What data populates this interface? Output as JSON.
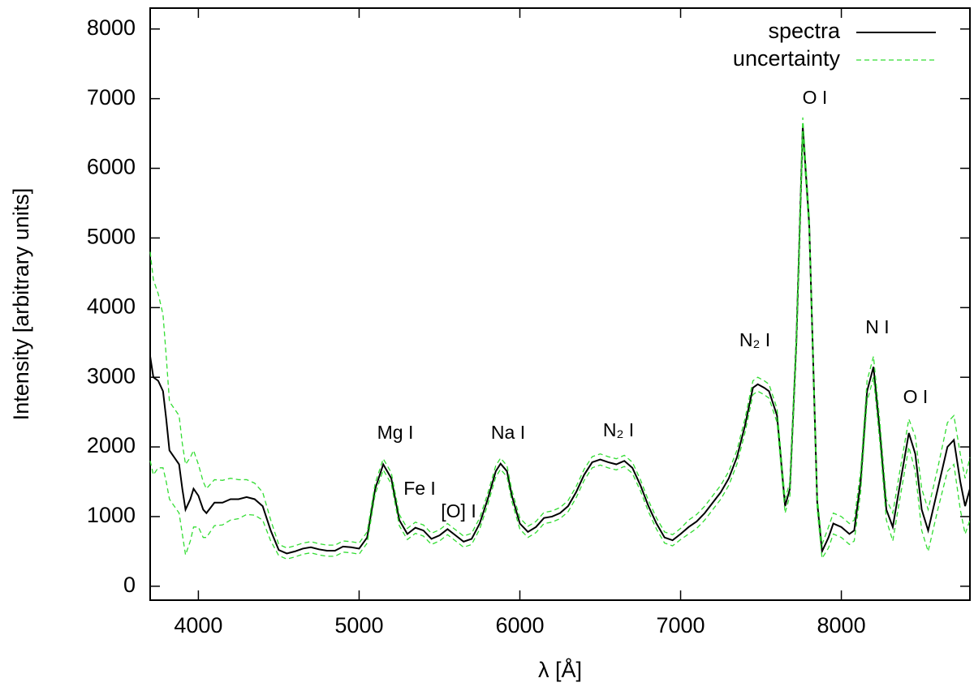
{
  "chart_data": {
    "type": "line",
    "x_label": "λ [Å]",
    "y_label": "Intensity [arbitrary units]",
    "xlim": [
      3700,
      8800
    ],
    "ylim": [
      -200,
      8300
    ],
    "xticks": [
      4000,
      5000,
      6000,
      7000,
      8000
    ],
    "yticks": [
      0,
      1000,
      2000,
      3000,
      4000,
      5000,
      6000,
      7000,
      8000
    ],
    "legend": "top-right",
    "annotations": [
      "Mg I",
      "Fe I",
      "[O] I",
      "Na I",
      "N₂ I",
      "N₂ I",
      "O I",
      "N I",
      "O I"
    ],
    "x": [
      3700,
      3720,
      3750,
      3780,
      3800,
      3820,
      3850,
      3880,
      3900,
      3920,
      3950,
      3970,
      4000,
      4030,
      4050,
      4100,
      4150,
      4200,
      4250,
      4300,
      4350,
      4400,
      4450,
      4500,
      4550,
      4600,
      4650,
      4700,
      4750,
      4800,
      4850,
      4900,
      4950,
      5000,
      5050,
      5100,
      5150,
      5200,
      5250,
      5300,
      5350,
      5400,
      5450,
      5500,
      5550,
      5600,
      5650,
      5700,
      5750,
      5800,
      5850,
      5880,
      5920,
      5950,
      6000,
      6050,
      6100,
      6150,
      6200,
      6250,
      6300,
      6350,
      6400,
      6450,
      6500,
      6550,
      6600,
      6650,
      6700,
      6750,
      6800,
      6850,
      6900,
      6950,
      7000,
      7050,
      7100,
      7150,
      7200,
      7250,
      7300,
      7350,
      7400,
      7450,
      7480,
      7520,
      7550,
      7600,
      7650,
      7680,
      7720,
      7760,
      7800,
      7850,
      7880,
      7920,
      7950,
      8000,
      8050,
      8080,
      8120,
      8160,
      8200,
      8240,
      8280,
      8320,
      8360,
      8420,
      8460,
      8500,
      8540,
      8600,
      8660,
      8700,
      8740,
      8770,
      8800
    ],
    "series": [
      {
        "name": "spectra",
        "color": "#000000",
        "dash": false,
        "values": [
          3300,
          3000,
          2950,
          2800,
          2400,
          1950,
          1850,
          1750,
          1400,
          1100,
          1250,
          1400,
          1300,
          1100,
          1050,
          1200,
          1200,
          1250,
          1250,
          1280,
          1250,
          1150,
          800,
          520,
          470,
          500,
          540,
          560,
          530,
          510,
          510,
          570,
          560,
          540,
          700,
          1400,
          1750,
          1550,
          950,
          750,
          840,
          800,
          680,
          730,
          820,
          730,
          640,
          680,
          900,
          1250,
          1650,
          1760,
          1650,
          1300,
          900,
          780,
          850,
          980,
          1000,
          1050,
          1150,
          1350,
          1600,
          1780,
          1820,
          1780,
          1750,
          1800,
          1700,
          1450,
          1150,
          900,
          700,
          660,
          750,
          850,
          930,
          1050,
          1200,
          1350,
          1550,
          1850,
          2300,
          2850,
          2900,
          2850,
          2800,
          2450,
          1150,
          1400,
          3500,
          6600,
          5200,
          1200,
          500,
          700,
          900,
          850,
          750,
          800,
          1500,
          2800,
          3150,
          2200,
          1100,
          850,
          1400,
          2200,
          1900,
          1100,
          800,
          1400,
          2000,
          2100,
          1500,
          1150,
          1400
        ]
      },
      {
        "name": "uncertainty",
        "color": "#33dd33",
        "dash": true,
        "values": [
          1500,
          1400,
          1250,
          1100,
          900,
          700,
          700,
          700,
          650,
          650,
          600,
          550,
          450,
          400,
          350,
          330,
          320,
          300,
          280,
          250,
          230,
          200,
          150,
          80,
          80,
          80,
          80,
          80,
          80,
          80,
          80,
          80,
          80,
          80,
          80,
          80,
          80,
          80,
          80,
          80,
          80,
          80,
          80,
          80,
          80,
          80,
          80,
          80,
          80,
          80,
          80,
          80,
          80,
          80,
          80,
          80,
          80,
          80,
          80,
          80,
          80,
          80,
          80,
          80,
          80,
          80,
          80,
          80,
          80,
          80,
          80,
          80,
          80,
          80,
          80,
          100,
          100,
          100,
          100,
          100,
          100,
          100,
          100,
          100,
          100,
          100,
          100,
          100,
          100,
          100,
          120,
          130,
          120,
          100,
          100,
          150,
          150,
          150,
          150,
          150,
          150,
          150,
          150,
          150,
          150,
          200,
          200,
          200,
          250,
          300,
          300,
          300,
          350,
          350,
          400,
          400,
          450
        ]
      }
    ]
  }
}
